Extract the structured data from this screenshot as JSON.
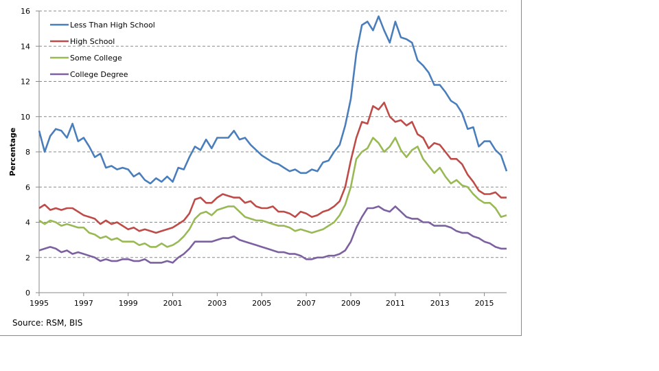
{
  "chart_data": {
    "type": "line",
    "title": "",
    "xlabel": "",
    "ylabel": "Percentage",
    "xlim": [
      1995,
      2016
    ],
    "ylim": [
      0,
      16
    ],
    "x_start": 1995,
    "x_step": 0.25,
    "x_ticks": [
      "1995",
      "1997",
      "1999",
      "2001",
      "2003",
      "2005",
      "2007",
      "2009",
      "2011",
      "2013",
      "2015"
    ],
    "y_ticks": [
      "0",
      "2",
      "4",
      "6",
      "8",
      "10",
      "12",
      "14",
      "16"
    ],
    "grid": "horizontal dashed",
    "legend_position": "top-left",
    "series": [
      {
        "name": "Less Than High School",
        "color": "#4a7ebb",
        "values": [
          9.2,
          8.0,
          8.9,
          9.3,
          9.2,
          8.8,
          9.6,
          8.6,
          8.8,
          8.3,
          7.7,
          7.9,
          7.1,
          7.2,
          7.0,
          7.1,
          7.0,
          6.6,
          6.8,
          6.4,
          6.2,
          6.5,
          6.3,
          6.6,
          6.3,
          7.1,
          7.0,
          7.7,
          8.3,
          8.1,
          8.7,
          8.2,
          8.8,
          8.8,
          8.8,
          9.2,
          8.7,
          8.8,
          8.4,
          8.1,
          7.8,
          7.6,
          7.4,
          7.3,
          7.1,
          6.9,
          7.0,
          6.8,
          6.8,
          7.0,
          6.9,
          7.4,
          7.5,
          8.0,
          8.4,
          9.5,
          11.0,
          13.6,
          15.2,
          15.4,
          14.9,
          15.7,
          14.9,
          14.2,
          15.4,
          14.5,
          14.4,
          14.2,
          13.2,
          12.9,
          12.5,
          11.8,
          11.8,
          11.4,
          10.9,
          10.7,
          10.2,
          9.3,
          9.4,
          8.3,
          8.6,
          8.6,
          8.1,
          7.8,
          6.9
        ]
      },
      {
        "name": "High School",
        "color": "#be4b48",
        "values": [
          4.8,
          5.0,
          4.7,
          4.8,
          4.7,
          4.8,
          4.8,
          4.6,
          4.4,
          4.3,
          4.2,
          3.9,
          4.1,
          3.9,
          4.0,
          3.8,
          3.6,
          3.7,
          3.5,
          3.6,
          3.5,
          3.4,
          3.5,
          3.6,
          3.7,
          3.9,
          4.1,
          4.5,
          5.3,
          5.4,
          5.1,
          5.1,
          5.4,
          5.6,
          5.5,
          5.4,
          5.4,
          5.1,
          5.2,
          4.9,
          4.8,
          4.8,
          4.9,
          4.6,
          4.6,
          4.5,
          4.3,
          4.6,
          4.5,
          4.3,
          4.4,
          4.6,
          4.7,
          4.9,
          5.2,
          6.0,
          7.5,
          8.8,
          9.7,
          9.6,
          10.6,
          10.4,
          10.8,
          10.0,
          9.7,
          9.8,
          9.5,
          9.7,
          9.0,
          8.8,
          8.2,
          8.5,
          8.4,
          8.0,
          7.6,
          7.6,
          7.3,
          6.7,
          6.3,
          5.8,
          5.6,
          5.6,
          5.7,
          5.4,
          5.4
        ]
      },
      {
        "name": "Some College",
        "color": "#98b954",
        "values": [
          4.1,
          3.9,
          4.1,
          4.0,
          3.8,
          3.9,
          3.8,
          3.7,
          3.7,
          3.4,
          3.3,
          3.1,
          3.2,
          3.0,
          3.1,
          2.9,
          2.9,
          2.9,
          2.7,
          2.8,
          2.6,
          2.6,
          2.8,
          2.6,
          2.7,
          2.9,
          3.2,
          3.6,
          4.2,
          4.5,
          4.6,
          4.4,
          4.7,
          4.8,
          4.9,
          4.9,
          4.6,
          4.3,
          4.2,
          4.1,
          4.1,
          4.0,
          3.9,
          3.8,
          3.8,
          3.7,
          3.5,
          3.6,
          3.5,
          3.4,
          3.5,
          3.6,
          3.8,
          4.0,
          4.4,
          5.0,
          6.0,
          7.6,
          8.0,
          8.2,
          8.8,
          8.5,
          8.0,
          8.3,
          8.8,
          8.1,
          7.7,
          8.1,
          8.3,
          7.6,
          7.2,
          6.8,
          7.1,
          6.6,
          6.2,
          6.4,
          6.1,
          6.0,
          5.6,
          5.3,
          5.1,
          5.1,
          4.8,
          4.3,
          4.4
        ]
      },
      {
        "name": "College Degree",
        "color": "#7d60a0",
        "values": [
          2.4,
          2.5,
          2.6,
          2.5,
          2.3,
          2.4,
          2.2,
          2.3,
          2.2,
          2.1,
          2.0,
          1.8,
          1.9,
          1.8,
          1.8,
          1.9,
          1.9,
          1.8,
          1.8,
          1.9,
          1.7,
          1.7,
          1.7,
          1.8,
          1.7,
          2.0,
          2.2,
          2.5,
          2.9,
          2.9,
          2.9,
          2.9,
          3.0,
          3.1,
          3.1,
          3.2,
          3.0,
          2.9,
          2.8,
          2.7,
          2.6,
          2.5,
          2.4,
          2.3,
          2.3,
          2.2,
          2.2,
          2.1,
          1.9,
          1.9,
          2.0,
          2.0,
          2.1,
          2.1,
          2.2,
          2.4,
          2.9,
          3.7,
          4.3,
          4.8,
          4.8,
          4.9,
          4.7,
          4.6,
          4.9,
          4.6,
          4.3,
          4.2,
          4.2,
          4.0,
          4.0,
          3.8,
          3.8,
          3.8,
          3.7,
          3.5,
          3.4,
          3.4,
          3.2,
          3.1,
          2.9,
          2.8,
          2.6,
          2.5,
          2.5
        ]
      }
    ]
  },
  "source": "Source: RSM, BIS"
}
